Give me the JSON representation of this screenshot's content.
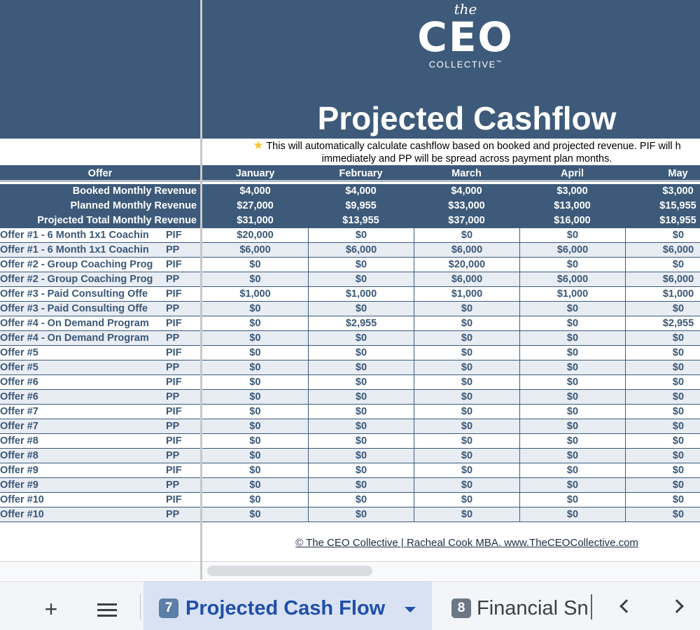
{
  "logo": {
    "the": "the",
    "ceo": "CEO",
    "collective": "COLLECTIVE",
    "tm": "™"
  },
  "title": "Projected Cashflow",
  "note": {
    "line1": "This will automatically calculate cashflow based on booked and projected revenue. PIF will h",
    "line2": "immediately and PP will be spread across payment plan months.",
    "icon": "star-icon"
  },
  "table": {
    "offer_header": "Offer",
    "months": [
      "January",
      "February",
      "March",
      "April",
      "May"
    ],
    "summary": [
      {
        "label": "Booked Monthly Revenue",
        "values": [
          "$4,000",
          "$4,000",
          "$4,000",
          "$3,000",
          "$3,000"
        ]
      },
      {
        "label": "Planned Monthly Revenue",
        "values": [
          "$27,000",
          "$9,955",
          "$33,000",
          "$13,000",
          "$15,955"
        ]
      },
      {
        "label": "Projected Total Monthly Revenue",
        "values": [
          "$31,000",
          "$13,955",
          "$37,000",
          "$16,000",
          "$18,955"
        ]
      }
    ],
    "rows": [
      {
        "offer": "Offer #1 - 6 Month 1x1 Coachin",
        "type": "PIF",
        "values": [
          "$20,000",
          "$0",
          "$0",
          "$0",
          "$0"
        ]
      },
      {
        "offer": "Offer #1 - 6 Month 1x1 Coachin",
        "type": "PP",
        "values": [
          "$6,000",
          "$6,000",
          "$6,000",
          "$6,000",
          "$6,000"
        ]
      },
      {
        "offer": "Offer #2 - Group Coaching Prog",
        "type": "PIF",
        "values": [
          "$0",
          "$0",
          "$20,000",
          "$0",
          "$0"
        ]
      },
      {
        "offer": "Offer #2 - Group Coaching Prog",
        "type": "PP",
        "values": [
          "$0",
          "$0",
          "$6,000",
          "$6,000",
          "$6,000"
        ]
      },
      {
        "offer": "Offer #3 - Paid Consulting Offe",
        "type": "PIF",
        "values": [
          "$1,000",
          "$1,000",
          "$1,000",
          "$1,000",
          "$1,000"
        ]
      },
      {
        "offer": "Offer #3 - Paid Consulting Offe",
        "type": "PP",
        "values": [
          "$0",
          "$0",
          "$0",
          "$0",
          "$0"
        ]
      },
      {
        "offer": "Offer #4 - On Demand Program",
        "type": "PIF",
        "values": [
          "$0",
          "$2,955",
          "$0",
          "$0",
          "$2,955"
        ]
      },
      {
        "offer": "Offer #4 - On Demand Program",
        "type": "PP",
        "values": [
          "$0",
          "$0",
          "$0",
          "$0",
          "$0"
        ]
      },
      {
        "offer": "Offer #5",
        "type": "PIF",
        "values": [
          "$0",
          "$0",
          "$0",
          "$0",
          "$0"
        ]
      },
      {
        "offer": "Offer #5",
        "type": "PP",
        "values": [
          "$0",
          "$0",
          "$0",
          "$0",
          "$0"
        ]
      },
      {
        "offer": "Offer #6",
        "type": "PIF",
        "values": [
          "$0",
          "$0",
          "$0",
          "$0",
          "$0"
        ]
      },
      {
        "offer": "Offer #6",
        "type": "PP",
        "values": [
          "$0",
          "$0",
          "$0",
          "$0",
          "$0"
        ]
      },
      {
        "offer": "Offer #7",
        "type": "PIF",
        "values": [
          "$0",
          "$0",
          "$0",
          "$0",
          "$0"
        ]
      },
      {
        "offer": "Offer #7",
        "type": "PP",
        "values": [
          "$0",
          "$0",
          "$0",
          "$0",
          "$0"
        ]
      },
      {
        "offer": "Offer #8",
        "type": "PIF",
        "values": [
          "$0",
          "$0",
          "$0",
          "$0",
          "$0"
        ]
      },
      {
        "offer": "Offer #8",
        "type": "PP",
        "values": [
          "$0",
          "$0",
          "$0",
          "$0",
          "$0"
        ]
      },
      {
        "offer": "Offer #9",
        "type": "PIF",
        "values": [
          "$0",
          "$0",
          "$0",
          "$0",
          "$0"
        ]
      },
      {
        "offer": "Offer #9",
        "type": "PP",
        "values": [
          "$0",
          "$0",
          "$0",
          "$0",
          "$0"
        ]
      },
      {
        "offer": "Offer #10",
        "type": "PIF",
        "values": [
          "$0",
          "$0",
          "$0",
          "$0",
          "$0"
        ]
      },
      {
        "offer": "Offer #10",
        "type": "PP",
        "values": [
          "$0",
          "$0",
          "$0",
          "$0",
          "$0"
        ]
      }
    ]
  },
  "copyright": "© The CEO Collective | Racheal Cook MBA. www.TheCEOCollective.com",
  "tabs": {
    "add_icon": "plus-icon",
    "menu_icon": "hamburger-menu-icon",
    "active": {
      "number": "7",
      "label": "Projected Cash Flow"
    },
    "next": {
      "number": "8",
      "label": "Financial Sn"
    },
    "scroll_left_icon": "chevron-left-icon",
    "scroll_right_icon": "chevron-right-icon"
  }
}
